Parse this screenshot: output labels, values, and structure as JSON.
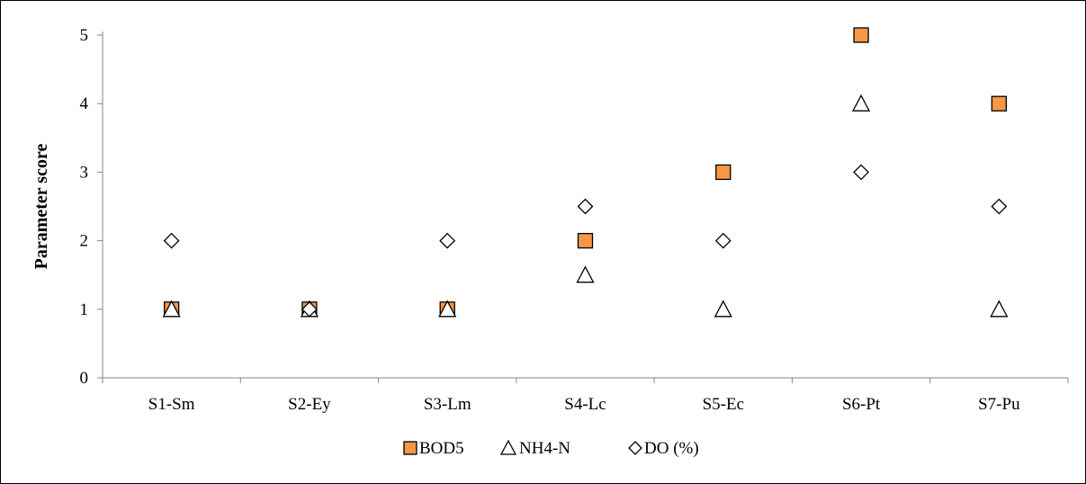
{
  "chart_data": {
    "type": "scatter",
    "title": "",
    "xlabel": "",
    "ylabel": "Parameter score",
    "categories": [
      "S1-Sm",
      "S2-Ey",
      "S3-Lm",
      "S4-Lc",
      "S5-Ec",
      "S6-Pt",
      "S7-Pu"
    ],
    "ylim": [
      0,
      5
    ],
    "yticks": [
      0,
      1,
      2,
      3,
      4,
      5
    ],
    "grid": false,
    "legend_position": "bottom",
    "series": [
      {
        "name": "BOD5",
        "marker": "square",
        "color": "#F79646",
        "values": [
          1,
          1,
          1,
          2,
          3,
          5,
          4
        ]
      },
      {
        "name": "NH4-N",
        "marker": "triangle",
        "color": "#FFFFFF",
        "values": [
          1,
          1,
          1,
          1.5,
          1,
          4,
          1
        ]
      },
      {
        "name": "DO (%)",
        "marker": "diamond",
        "color": "#FFFFFF",
        "values": [
          2,
          1,
          2,
          2.5,
          2,
          3,
          2.5
        ]
      }
    ]
  }
}
